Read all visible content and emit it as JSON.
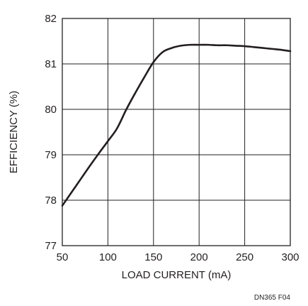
{
  "chart_data": {
    "type": "line",
    "title": "",
    "xlabel": "LOAD CURRENT (mA)",
    "ylabel": "EFFICIENCY (%)",
    "xlim": [
      50,
      300
    ],
    "ylim": [
      77,
      82
    ],
    "xticks": [
      50,
      100,
      150,
      200,
      250,
      300
    ],
    "yticks": [
      77,
      78,
      79,
      80,
      81,
      82
    ],
    "grid": true,
    "legend": "none",
    "series": [
      {
        "x": [
          50,
          60,
          70,
          80,
          90,
          100,
          110,
          120,
          130,
          140,
          150,
          160,
          170,
          180,
          190,
          200,
          210,
          220,
          230,
          240,
          250,
          260,
          270,
          280,
          290,
          300
        ],
        "y": [
          77.88,
          78.17,
          78.46,
          78.75,
          79.03,
          79.3,
          79.58,
          79.99,
          80.36,
          80.71,
          81.04,
          81.26,
          81.35,
          81.4,
          81.42,
          81.42,
          81.42,
          81.41,
          81.41,
          81.4,
          81.39,
          81.37,
          81.35,
          81.33,
          81.31,
          81.28
        ]
      }
    ],
    "annotation": "DN365 F04"
  },
  "colors": {
    "line": "#231f20",
    "grid": "#231f20",
    "text": "#231f20"
  }
}
